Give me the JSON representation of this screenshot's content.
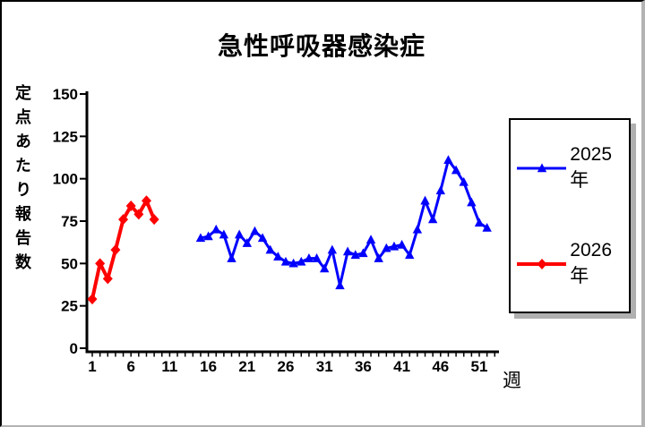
{
  "title": "急性呼吸器感染症",
  "axes": {
    "y_label": "定点あたり報告数",
    "x_label": "週"
  },
  "chart_data": {
    "type": "line",
    "title": "急性呼吸器感染症",
    "xlabel": "週",
    "ylabel": "定点あたり報告数",
    "xlim": [
      0,
      53
    ],
    "ylim": [
      0,
      150
    ],
    "x_ticks": [
      1,
      6,
      11,
      16,
      21,
      26,
      31,
      36,
      41,
      46,
      51
    ],
    "y_ticks": [
      0,
      25,
      50,
      75,
      100,
      125,
      150
    ],
    "grid": false,
    "legend_position": "right",
    "axis_color": "#000000",
    "series": [
      {
        "name": "2025年",
        "color": "#0000ff",
        "marker": "triangle",
        "x": [
          15,
          16,
          17,
          18,
          19,
          20,
          21,
          22,
          23,
          24,
          25,
          26,
          27,
          28,
          29,
          30,
          31,
          32,
          33,
          34,
          35,
          36,
          37,
          38,
          39,
          40,
          41,
          42,
          43,
          44,
          45,
          46,
          47,
          48,
          49,
          50,
          51,
          52
        ],
        "values": [
          65,
          66,
          70,
          67,
          53,
          67,
          62,
          69,
          65,
          58,
          54,
          51,
          50,
          51,
          53,
          53,
          47,
          58,
          37,
          57,
          55,
          56,
          64,
          53,
          59,
          60,
          61,
          55,
          70,
          87,
          76,
          93,
          111,
          105,
          98,
          86,
          74,
          71
        ]
      },
      {
        "name": "2026年",
        "color": "#ff0000",
        "marker": "diamond",
        "x": [
          1,
          2,
          3,
          4,
          5,
          6,
          7,
          8,
          9
        ],
        "values": [
          29,
          50,
          41,
          58,
          76,
          84,
          79,
          87,
          76
        ]
      }
    ]
  }
}
